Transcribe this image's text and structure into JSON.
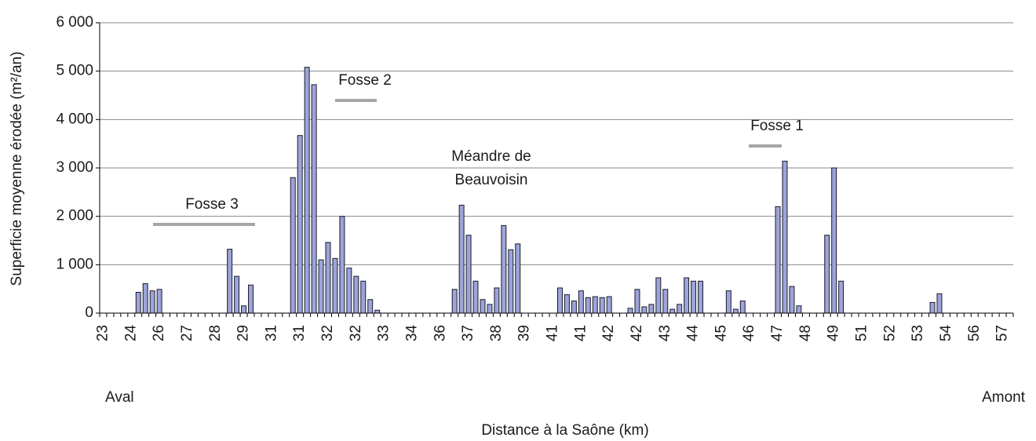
{
  "chart_data": {
    "type": "bar",
    "y_label": "Superficie moyenne érodée (m²/an)",
    "x_label": "Distance à la Saône (km)",
    "x_left_label": "Aval",
    "x_right_label": "Amont",
    "annotations": [
      "Fosse 3",
      "Fosse 2",
      "Méandre de",
      "Beauvoisin",
      "Fosse 1"
    ],
    "color": "#9ca5d8",
    "categories": [
      "23",
      null,
      null,
      null,
      "24",
      null,
      null,
      null,
      "26",
      null,
      null,
      null,
      "27",
      null,
      null,
      null,
      "28",
      null,
      null,
      null,
      "29",
      null,
      null,
      null,
      "31",
      null,
      null,
      null,
      "31",
      null,
      null,
      null,
      "32",
      null,
      null,
      null,
      "32",
      null,
      null,
      null,
      "33",
      null,
      null,
      null,
      "34",
      null,
      null,
      null,
      "36",
      null,
      null,
      null,
      "37",
      null,
      null,
      null,
      "38",
      null,
      null,
      null,
      "39",
      null,
      null,
      null,
      "41",
      null,
      null,
      null,
      "41",
      null,
      null,
      null,
      "42",
      null,
      null,
      null,
      "42",
      null,
      null,
      null,
      "43",
      null,
      null,
      null,
      "44",
      null,
      null,
      null,
      "45",
      null,
      null,
      null,
      "46",
      null,
      null,
      null,
      "47",
      null,
      null,
      null,
      "48",
      null,
      null,
      null,
      "49",
      null,
      null,
      null,
      "51",
      null,
      null,
      null,
      "52",
      null,
      null,
      null,
      "53",
      null,
      null,
      null,
      "54",
      null,
      null,
      null,
      "56",
      null,
      null,
      null,
      "57",
      null
    ],
    "values": [
      0,
      0,
      0,
      0,
      0,
      430,
      610,
      460,
      490,
      0,
      0,
      0,
      0,
      0,
      0,
      0,
      0,
      0,
      1320,
      760,
      150,
      580,
      0,
      0,
      0,
      0,
      0,
      2800,
      3670,
      5080,
      4720,
      1100,
      1460,
      1130,
      2000,
      930,
      760,
      660,
      280,
      60,
      0,
      0,
      0,
      0,
      0,
      0,
      0,
      0,
      0,
      0,
      490,
      2230,
      1610,
      660,
      280,
      180,
      520,
      1810,
      1310,
      1430,
      0,
      0,
      0,
      0,
      0,
      520,
      380,
      250,
      460,
      320,
      340,
      320,
      340,
      0,
      0,
      100,
      490,
      130,
      180,
      730,
      490,
      80,
      180,
      730,
      660,
      660,
      0,
      0,
      0,
      460,
      80,
      250,
      0,
      0,
      0,
      0,
      2200,
      3140,
      550,
      150,
      0,
      0,
      0,
      1610,
      3000,
      660,
      0,
      0,
      0,
      0,
      0,
      0,
      0,
      0,
      0,
      0,
      0,
      0,
      220,
      400,
      0,
      0,
      0,
      0,
      0,
      0,
      0,
      0,
      0,
      0
    ],
    "ylim": [
      0,
      6000
    ],
    "yticks": [
      0,
      {
        "value": 1000,
        "label": "1 000"
      },
      {
        "value": 2000,
        "label": "2 000"
      },
      {
        "value": 3000,
        "label": "3 000"
      },
      {
        "value": 4000,
        "label": "4 000"
      },
      {
        "value": 5000,
        "label": "5 000"
      },
      {
        "value": 6000,
        "label": "6 000"
      }
    ],
    "grid": true
  }
}
